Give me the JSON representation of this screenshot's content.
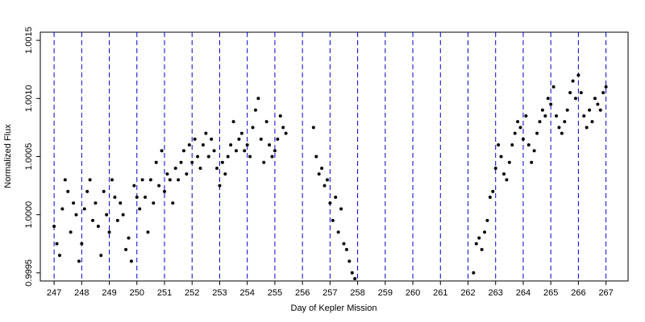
{
  "chart_data": {
    "type": "scatter",
    "x_label": "Day of Kepler Mission",
    "y_label": "Normalized Flux",
    "color": "#000000",
    "grid": "x",
    "grid_color": "#0000cc",
    "grid_style": "dashed",
    "xlim": [
      246.5,
      267.8
    ],
    "ylim": [
      0.99943,
      1.00157
    ],
    "xticks": [
      247,
      248,
      249,
      250,
      251,
      252,
      253,
      254,
      255,
      256,
      257,
      258,
      259,
      260,
      261,
      262,
      263,
      264,
      265,
      266,
      267
    ],
    "yticks": [
      {
        "value": 0.9995,
        "label": "0.9995"
      },
      {
        "value": 1.0,
        "label": "1.0000"
      },
      {
        "value": 1.0005,
        "label": "1.0005"
      },
      {
        "value": 1.001,
        "label": "1.0010"
      },
      {
        "value": 1.0015,
        "label": "1.0015"
      }
    ],
    "x": [
      247.0,
      247.1,
      247.2,
      247.3,
      247.4,
      247.5,
      247.6,
      247.7,
      247.8,
      247.9,
      248.0,
      248.1,
      248.2,
      248.3,
      248.4,
      248.5,
      248.6,
      248.7,
      248.8,
      248.9,
      249.0,
      249.1,
      249.2,
      249.3,
      249.4,
      249.5,
      249.6,
      249.7,
      249.8,
      249.9,
      250.0,
      250.1,
      250.2,
      250.3,
      250.4,
      250.5,
      250.6,
      250.7,
      250.8,
      250.9,
      251.0,
      251.1,
      251.2,
      251.3,
      251.4,
      251.5,
      251.6,
      251.7,
      251.8,
      251.9,
      252.0,
      252.1,
      252.2,
      252.3,
      252.4,
      252.5,
      252.6,
      252.7,
      252.8,
      252.9,
      253.0,
      253.1,
      253.2,
      253.3,
      253.4,
      253.5,
      253.6,
      253.7,
      253.8,
      253.9,
      254.0,
      254.1,
      254.2,
      254.3,
      254.4,
      254.5,
      254.6,
      254.7,
      254.8,
      254.9,
      255.0,
      255.1,
      255.2,
      255.3,
      255.4,
      256.4,
      256.5,
      256.6,
      256.7,
      256.8,
      256.9,
      257.0,
      257.1,
      257.2,
      257.3,
      257.4,
      257.5,
      257.6,
      257.7,
      257.8,
      257.9,
      262.2,
      262.3,
      262.4,
      262.5,
      262.6,
      262.7,
      262.8,
      262.9,
      263.0,
      263.1,
      263.2,
      263.3,
      263.4,
      263.5,
      263.6,
      263.7,
      263.8,
      263.9,
      264.0,
      264.1,
      264.2,
      264.3,
      264.4,
      264.5,
      264.6,
      264.7,
      264.8,
      264.9,
      265.0,
      265.1,
      265.2,
      265.3,
      265.4,
      265.5,
      265.6,
      265.7,
      265.8,
      265.9,
      266.0,
      266.1,
      266.2,
      266.3,
      266.4,
      266.5,
      266.6,
      266.7,
      266.8,
      266.9,
      267.0
    ],
    "values": [
      0.9999,
      0.99975,
      0.99965,
      1.00005,
      1.0003,
      1.0002,
      0.99985,
      1.0001,
      1.0,
      0.9996,
      0.99975,
      1.00005,
      1.0002,
      1.0003,
      0.99995,
      1.0001,
      0.9999,
      0.99965,
      1.0002,
      1.0,
      0.99985,
      1.0003,
      1.00015,
      0.99995,
      1.0001,
      1.0,
      0.9997,
      0.9998,
      0.9996,
      1.00025,
      1.00015,
      1.00005,
      1.0003,
      1.00015,
      0.99985,
      1.0003,
      1.0001,
      1.00045,
      1.00025,
      1.00055,
      1.0002,
      1.00035,
      1.0003,
      1.0001,
      1.0004,
      1.0003,
      1.00045,
      1.00055,
      1.00035,
      1.0006,
      1.00045,
      1.00065,
      1.0005,
      1.0004,
      1.0006,
      1.0007,
      1.0005,
      1.00065,
      1.00055,
      1.0004,
      1.00025,
      1.00045,
      1.00035,
      1.0005,
      1.0006,
      1.0008,
      1.00055,
      1.00065,
      1.0007,
      1.00055,
      1.0006,
      1.0005,
      1.00075,
      1.0009,
      1.001,
      1.00065,
      1.00045,
      1.0008,
      1.0006,
      1.0005,
      1.00055,
      1.00065,
      1.00085,
      1.00075,
      1.0007,
      1.00075,
      1.0005,
      1.00035,
      1.0004,
      1.00025,
      1.0003,
      1.0001,
      0.99995,
      1.00015,
      0.99985,
      1.00005,
      0.99975,
      0.9997,
      0.9996,
      0.9995,
      0.99945,
      0.9995,
      0.99975,
      0.9998,
      0.9997,
      0.99985,
      0.99995,
      1.00015,
      1.0002,
      1.0004,
      1.0006,
      1.0005,
      1.00035,
      1.0003,
      1.00045,
      1.0006,
      1.0007,
      1.0008,
      1.00075,
      1.00065,
      1.00085,
      1.0006,
      1.00045,
      1.00055,
      1.0007,
      1.0008,
      1.0009,
      1.00085,
      1.001,
      1.00095,
      1.0011,
      1.00085,
      1.00075,
      1.0007,
      1.0008,
      1.0009,
      1.00105,
      1.00115,
      1.001,
      1.0012,
      1.00105,
      1.00085,
      1.00075,
      1.0009,
      1.0008,
      1.001,
      1.00095,
      1.0009,
      1.00105,
      1.0011
    ]
  }
}
